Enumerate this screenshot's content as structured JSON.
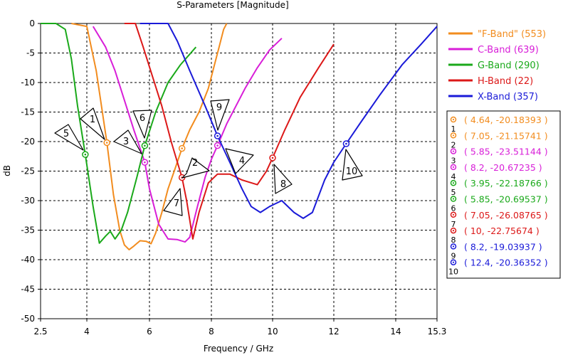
{
  "chart_data": {
    "type": "line",
    "title": "S-Parameters [Magnitude]",
    "xlabel": "Frequency / GHz",
    "ylabel": "dB",
    "xlim": [
      2.5,
      15.3
    ],
    "ylim": [
      -50,
      0
    ],
    "xticks": [
      "2.5",
      "4",
      "6",
      "8",
      "10",
      "12",
      "14",
      "15.3"
    ],
    "xtick_values": [
      2.5,
      4,
      6,
      8,
      10,
      12,
      14,
      15.3
    ],
    "yticks": [
      "0",
      "-5",
      "-10",
      "-15",
      "-20",
      "-25",
      "-30",
      "-35",
      "-40",
      "-45",
      "-50"
    ],
    "ytick_values": [
      0,
      -5,
      -10,
      -15,
      -20,
      -25,
      -30,
      -35,
      -40,
      -45,
      -50
    ],
    "grid": true,
    "legend_position": "top-right",
    "series": [
      {
        "name": "\"F-Band\" (553)",
        "color": "#f28c1e",
        "x": [
          3.5,
          4.0,
          4.3,
          4.64,
          4.85,
          5.05,
          5.2,
          5.35,
          5.5,
          5.7,
          5.9,
          6.05,
          6.2,
          6.4,
          6.6,
          6.8,
          7.05,
          7.3,
          7.6,
          7.9,
          8.1,
          8.25,
          8.4,
          8.5
        ],
        "y": [
          0,
          -0.5,
          -8,
          -20.18,
          -29,
          -35,
          -37.5,
          -38.3,
          -37.7,
          -36.8,
          -36.9,
          -37.3,
          -35.5,
          -32,
          -28,
          -25,
          -21.16,
          -18,
          -15,
          -11,
          -7,
          -4,
          -1,
          0
        ]
      },
      {
        "name": "C-Band (639)",
        "color": "#d81ed8",
        "x": [
          4.2,
          4.6,
          4.9,
          5.2,
          5.5,
          5.85,
          6.0,
          6.3,
          6.6,
          6.9,
          7.15,
          7.3,
          7.55,
          7.8,
          8.0,
          8.2,
          8.5,
          8.8,
          9.1,
          9.5,
          9.9,
          10.3
        ],
        "y": [
          -0.5,
          -4,
          -8,
          -13,
          -18,
          -23.51,
          -28,
          -34,
          -36.5,
          -36.6,
          -37,
          -36.2,
          -31,
          -26,
          -23,
          -20.67,
          -17,
          -14,
          -11,
          -7.5,
          -4.5,
          -2.5
        ]
      },
      {
        "name": "G-Band (290)",
        "color": "#1aa91a",
        "x": [
          2.5,
          3.0,
          3.3,
          3.5,
          3.7,
          3.95,
          4.2,
          4.4,
          4.6,
          4.75,
          4.9,
          5.1,
          5.3,
          5.6,
          5.85,
          6.2,
          6.6,
          7.0,
          7.5
        ],
        "y": [
          0,
          0,
          -1,
          -6,
          -14,
          -22.19,
          -31,
          -37.2,
          -36,
          -35.2,
          -36.5,
          -35,
          -32,
          -26,
          -20.7,
          -15,
          -10,
          -7,
          -4
        ]
      },
      {
        "name": "H-Band (22)",
        "color": "#dc1818",
        "x": [
          5.2,
          5.55,
          5.8,
          6.1,
          6.4,
          6.7,
          6.9,
          7.05,
          7.2,
          7.4,
          7.6,
          7.9,
          8.2,
          8.6,
          9.0,
          9.5,
          9.8,
          10.0,
          10.4,
          10.9,
          11.5,
          12.0
        ],
        "y": [
          0,
          0,
          -4,
          -9,
          -14,
          -20,
          -23.5,
          -26.09,
          -30,
          -36.5,
          -32,
          -27,
          -25.5,
          -25.5,
          -26.5,
          -27.3,
          -25,
          -22.76,
          -18,
          -12.5,
          -7.5,
          -3.5
        ]
      },
      {
        "name": "X-Band (357)",
        "color": "#1a1ad8",
        "x": [
          5.7,
          6.6,
          6.9,
          7.3,
          7.8,
          8.2,
          8.6,
          9.0,
          9.3,
          9.6,
          9.9,
          10.3,
          10.7,
          11.0,
          11.3,
          11.7,
          12.0,
          12.4,
          12.9,
          13.5,
          14.2,
          14.8,
          15.3
        ],
        "y": [
          0,
          0,
          -3,
          -8,
          -14,
          -19.04,
          -23.5,
          -28,
          -31,
          -32,
          -31,
          -30,
          -32,
          -33,
          -32,
          -26.5,
          -23.5,
          -20.36,
          -16.5,
          -12,
          -7,
          -3.5,
          -0.5
        ]
      }
    ],
    "markers": [
      {
        "id": "1",
        "x": 4.64,
        "y": -20.18393,
        "label": "( 4.64, -20.18393 )",
        "series": 0
      },
      {
        "id": "2",
        "x": 7.05,
        "y": -21.15741,
        "label": "( 7.05, -21.15741 )",
        "series": 0
      },
      {
        "id": "3",
        "x": 5.85,
        "y": -23.51144,
        "label": "( 5.85, -23.51144 )",
        "series": 1
      },
      {
        "id": "4",
        "x": 8.2,
        "y": -20.67235,
        "label": "( 8.2, -20.67235 )",
        "series": 1
      },
      {
        "id": "5",
        "x": 3.95,
        "y": -22.18766,
        "label": "( 3.95, -22.18766 )",
        "series": 2
      },
      {
        "id": "6",
        "x": 5.85,
        "y": -20.69537,
        "label": "( 5.85, -20.69537 )",
        "series": 2
      },
      {
        "id": "7",
        "x": 7.05,
        "y": -26.08765,
        "label": "( 7.05, -26.08765 )",
        "series": 3
      },
      {
        "id": "8",
        "x": 10,
        "y": -22.75674,
        "label": "( 10, -22.75674 )",
        "series": 3
      },
      {
        "id": "9",
        "x": 8.2,
        "y": -19.03937,
        "label": "( 8.2, -19.03937 )",
        "series": 4
      },
      {
        "id": "10",
        "x": 12.4,
        "y": -20.36352,
        "label": "( 12.4, -20.36352 )",
        "series": 4
      }
    ]
  }
}
